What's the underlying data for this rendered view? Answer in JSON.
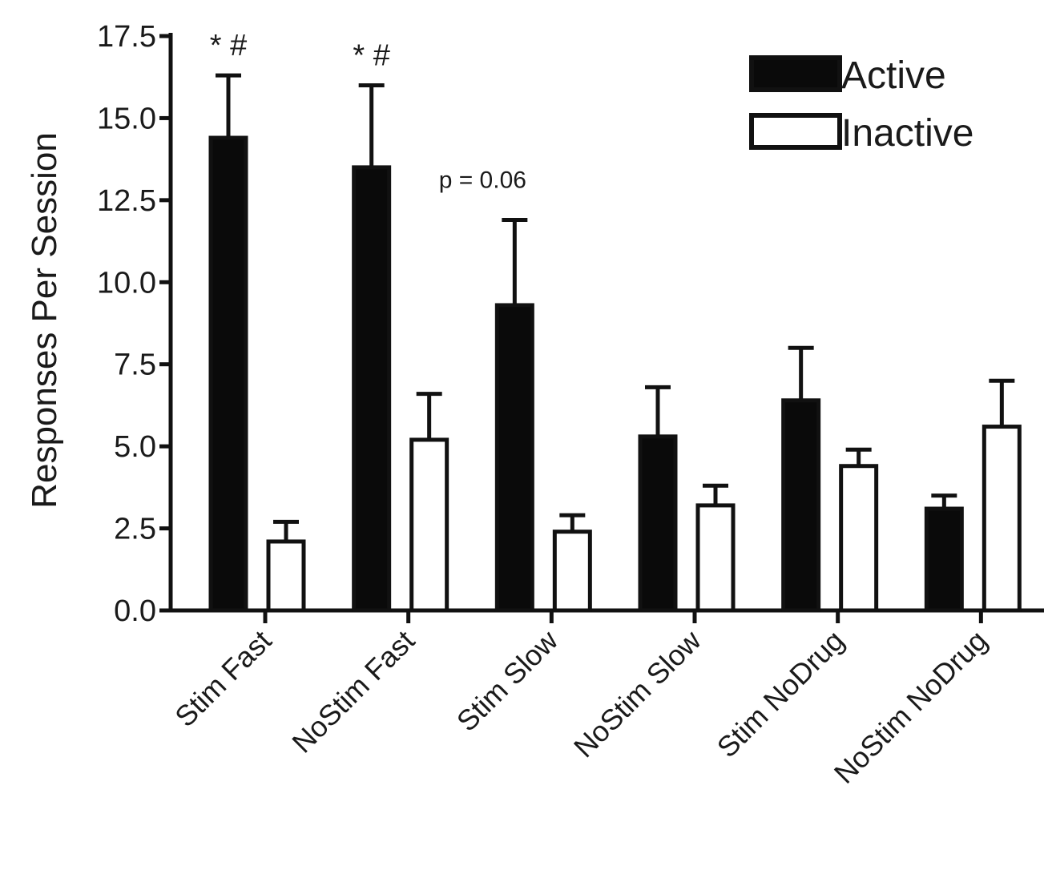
{
  "chart_data": {
    "type": "bar",
    "title": "",
    "xlabel": "",
    "ylabel": "Responses  Per  Session",
    "ylim": [
      0,
      17.5
    ],
    "yticks": [
      "0.0",
      "2.5",
      "5.0",
      "7.5",
      "10.0",
      "12.5",
      "15.0",
      "17.5"
    ],
    "categories": [
      "Stim Fast",
      "NoStim Fast",
      "Stim Slow",
      "NoStim Slow",
      "Stim NoDrug",
      "NoStim NoDrug"
    ],
    "series": [
      {
        "name": "Active",
        "color": "#0a0a0a",
        "values": [
          14.4,
          13.5,
          9.3,
          5.3,
          6.4,
          3.1
        ],
        "errors": [
          1.9,
          2.5,
          2.6,
          1.5,
          1.6,
          0.4
        ]
      },
      {
        "name": "Inactive",
        "color": "#ffffff",
        "values": [
          2.1,
          5.2,
          2.4,
          3.2,
          4.4,
          5.6
        ],
        "errors": [
          0.6,
          1.4,
          0.5,
          0.6,
          0.5,
          1.4
        ]
      }
    ],
    "annotations": [
      {
        "category": "Stim Fast",
        "text": "* #"
      },
      {
        "category": "NoStim Fast",
        "text": "* #"
      },
      {
        "category": "Stim Slow",
        "text": "p = 0.06"
      }
    ],
    "legend_position": "top-right",
    "grid": false
  }
}
